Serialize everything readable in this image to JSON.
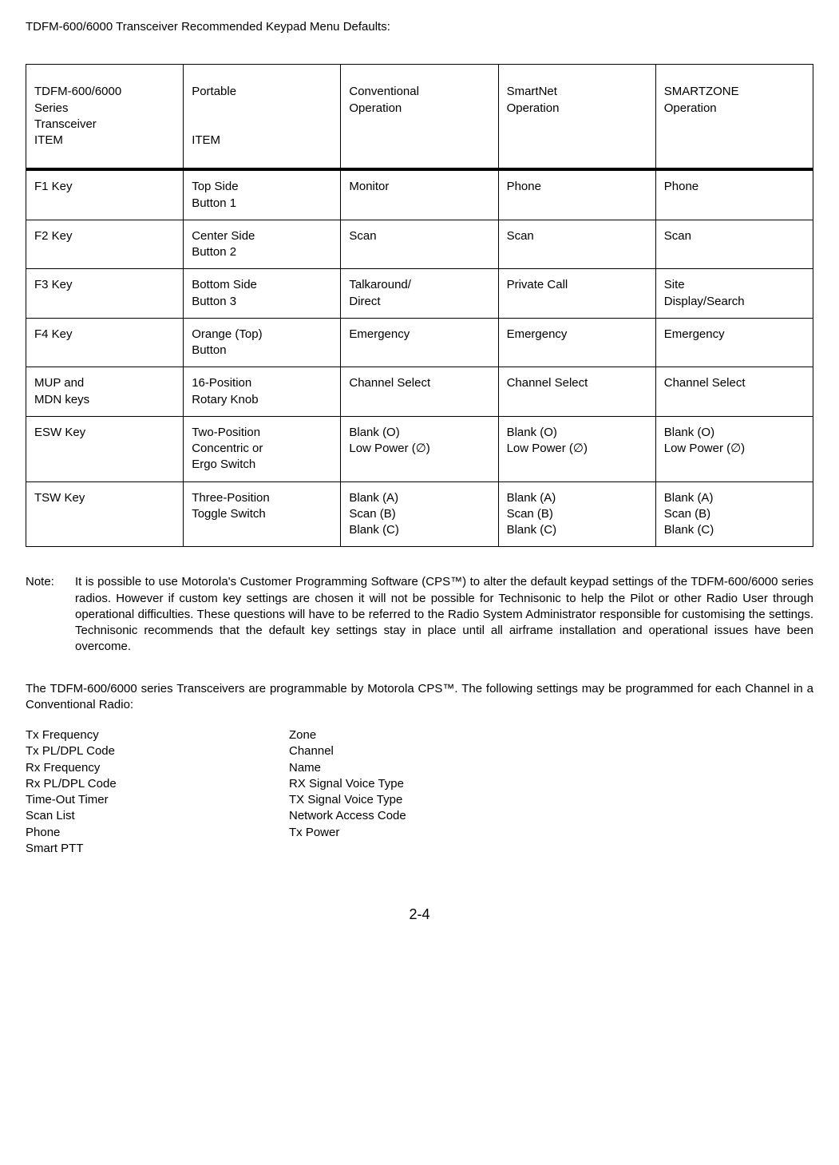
{
  "title": "TDFM-600/6000 Transceiver Recommended Keypad Menu Defaults:",
  "table": {
    "header": {
      "c0a": "TDFM-600/6000",
      "c0b": "Series",
      "c0c": "Transceiver",
      "c0d": "ITEM",
      "c1a": "Portable",
      "c1b": "ITEM",
      "c2a": "Conventional",
      "c2b": "Operation",
      "c3a": "SmartNet",
      "c3b": "Operation",
      "c4a": "SMARTZONE",
      "c4b": "Operation"
    },
    "rows": [
      {
        "c0": "F1 Key",
        "c1a": "Top Side",
        "c1b": "Button 1",
        "c2": "Monitor",
        "c3": "Phone",
        "c4": "Phone"
      },
      {
        "c0": "F2 Key",
        "c1a": "Center Side",
        "c1b": "Button 2",
        "c2": "Scan",
        "c3": "Scan",
        "c4": "Scan"
      },
      {
        "c0": "F3 Key",
        "c1a": "Bottom Side",
        "c1b": "Button 3",
        "c2a": "Talkaround/",
        "c2b": "Direct",
        "c3": "Private Call",
        "c4a": "Site",
        "c4b": "Display/Search"
      },
      {
        "c0": "F4 Key",
        "c1a": "Orange (Top)",
        "c1b": "Button",
        "c2": "Emergency",
        "c3": "Emergency",
        "c4": "Emergency"
      },
      {
        "c0a": "MUP and",
        "c0b": "MDN keys",
        "c1a": "16-Position",
        "c1b": "Rotary Knob",
        "c2": "Channel Select",
        "c3": "Channel Select",
        "c4": "Channel Select"
      },
      {
        "c0": "ESW Key",
        "c1a": "Two-Position",
        "c1b": "Concentric or",
        "c1c": "Ergo Switch",
        "c2a": "Blank (O)",
        "c2b": "Low Power (∅)",
        "c3a": "Blank (O)",
        "c3b": "Low Power (∅)",
        "c4a": "Blank (O)",
        "c4b": "Low Power (∅)"
      },
      {
        "c0": "TSW Key",
        "c1a": "Three-Position",
        "c1b": "Toggle Switch",
        "c2a": "Blank (A)",
        "c2b": "Scan  (B)",
        "c2c": "Blank (C)",
        "c3a": "Blank (A)",
        "c3b": "Scan  (B)",
        "c3c": "Blank (C)",
        "c4a": "Blank (A)",
        "c4b": "Scan  (B)",
        "c4c": "Blank (C)"
      }
    ]
  },
  "note_label": "Note:",
  "note_text": "It is possible to use Motorola's Customer Programming Software (CPS™) to alter the default keypad settings of the TDFM-600/6000 series radios.  However if custom key settings are chosen it will not be possible for Technisonic to help the Pilot or other Radio User through operational difficulties.  These questions will have to be referred to the Radio System Administrator responsible for customising the settings. Technisonic recommends that the default key settings stay in place until all airframe installation and operational issues have been overcome.",
  "para": "The TDFM-600/6000 series Transceivers are programmable by Motorola CPS™. The following settings may be programmed for each Channel in a Conventional Radio:",
  "col1": [
    "Tx Frequency",
    "Tx PL/DPL Code",
    "Rx Frequency",
    "Rx PL/DPL Code",
    "Time-Out Timer",
    "Scan List",
    "Phone",
    "Smart PTT"
  ],
  "col2": [
    "Zone",
    "Channel",
    "Name",
    "RX Signal Voice Type",
    "TX Signal Voice Type",
    "Network Access Code",
    "Tx Power"
  ],
  "page_num": "2-4"
}
